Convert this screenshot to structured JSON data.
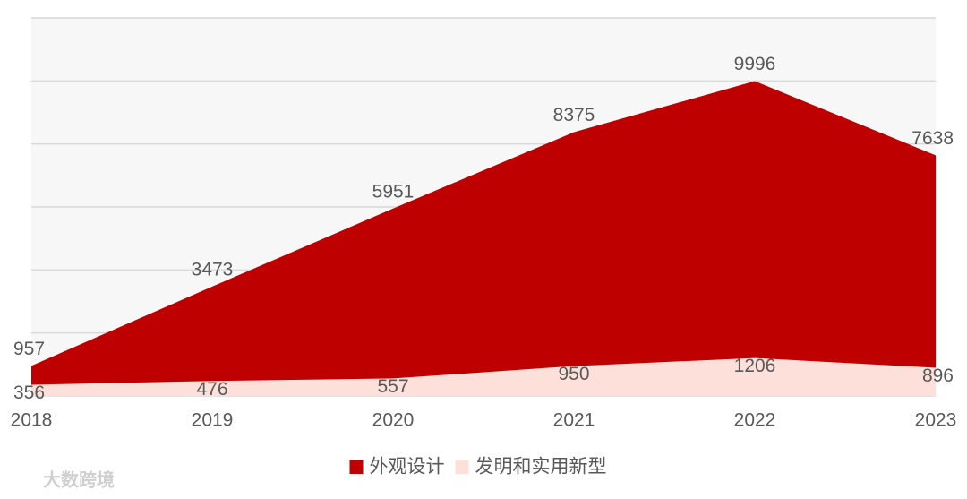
{
  "chart_data": {
    "type": "area",
    "categories": [
      "2018",
      "2019",
      "2020",
      "2021",
      "2022",
      "2023"
    ],
    "series": [
      {
        "name": "外观设计",
        "color": "#bf0000",
        "values": [
          957,
          3473,
          5951,
          8375,
          9996,
          7638
        ]
      },
      {
        "name": "发明和实用新型",
        "color": "#fde0d9",
        "values": [
          356,
          476,
          557,
          950,
          1206,
          896
        ]
      }
    ],
    "ylim": [
      0,
      12000
    ],
    "yticks": [
      0,
      2000,
      4000,
      6000,
      8000,
      10000,
      12000
    ],
    "grid": true,
    "legend": "bottom"
  },
  "watermark": "大数跨境"
}
